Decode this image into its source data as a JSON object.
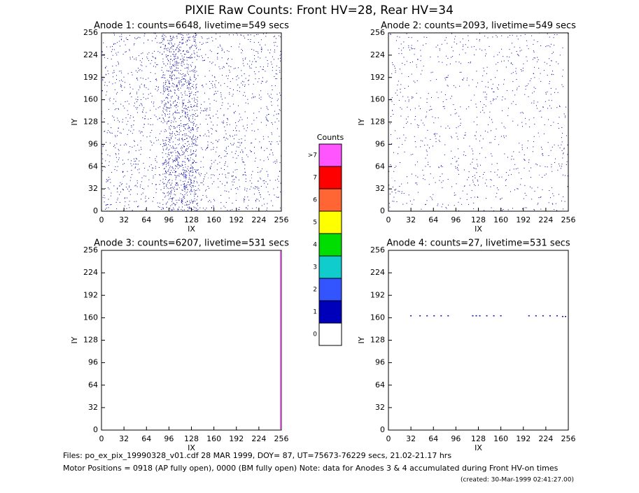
{
  "title": "PIXIE Raw Counts:  Front HV=28, Rear HV=34",
  "chart_data": [
    {
      "type": "scatter",
      "title": "Anode 1: counts=6648, livetime=549 secs",
      "x_label": "IX",
      "y_label": "IY",
      "xlim": [
        0,
        256
      ],
      "ylim": [
        0,
        256
      ],
      "xticks": [
        0,
        32,
        64,
        96,
        128,
        160,
        192,
        224,
        256
      ],
      "yticks": [
        0,
        32,
        64,
        96,
        128,
        160,
        192,
        224,
        256
      ],
      "color": "#0000a0"
    },
    {
      "type": "scatter",
      "title": "Anode 2: counts=2093, livetime=549 secs",
      "x_label": "IX",
      "y_label": "IY",
      "xlim": [
        0,
        256
      ],
      "ylim": [
        0,
        256
      ],
      "xticks": [
        0,
        32,
        64,
        96,
        128,
        160,
        192,
        224,
        256
      ],
      "yticks": [
        0,
        32,
        64,
        96,
        128,
        160,
        192,
        224,
        256
      ],
      "color": "#0000a0"
    },
    {
      "type": "line",
      "title": "Anode 3: counts=6207, livetime=531 secs",
      "x_label": "IX",
      "y_label": "IY",
      "xlim": [
        0,
        256
      ],
      "ylim": [
        0,
        256
      ],
      "xticks": [
        0,
        32,
        64,
        96,
        128,
        160,
        192,
        224,
        256
      ],
      "yticks": [
        0,
        32,
        64,
        96,
        128,
        160,
        192,
        224,
        256
      ],
      "color": "#d060d0",
      "x": [
        255,
        255
      ],
      "y": [
        1,
        255
      ]
    },
    {
      "type": "scatter",
      "title": "Anode 4: counts=27, livetime=531 secs",
      "x_label": "IX",
      "y_label": "IY",
      "xlim": [
        0,
        256
      ],
      "ylim": [
        0,
        256
      ],
      "xticks": [
        0,
        32,
        64,
        96,
        128,
        160,
        192,
        224,
        256
      ],
      "yticks": [
        0,
        32,
        64,
        96,
        128,
        160,
        192,
        224,
        256
      ],
      "color": "#0000a0",
      "x": [
        32,
        45,
        55,
        65,
        75,
        85,
        120,
        125,
        130,
        140,
        150,
        160,
        200,
        210,
        220,
        230,
        240,
        248,
        252
      ],
      "y": [
        163,
        163,
        163,
        163,
        163,
        163,
        163,
        163,
        163,
        163,
        163,
        163,
        163,
        163,
        163,
        163,
        163,
        162,
        162
      ]
    },
    {
      "type": "colorbar",
      "title": "Counts",
      "categories": [
        "0",
        "1",
        "2",
        "3",
        "4",
        "5",
        "6",
        "7",
        ">7"
      ],
      "colors": [
        "#ffffff",
        "#0000bb",
        "#3355ff",
        "#11cccc",
        "#00dd00",
        "#ffff00",
        "#ff6633",
        "#ff0000",
        "#ff55ff"
      ]
    }
  ],
  "footer": [
    "Files: po_ex_pix_19990328_v01.cdf    28 MAR 1999, DOY= 87, UT=75673-76229 secs, 21.02-21.17 hrs",
    "Motor Positions = 0918 (AP fully open), 0000 (BM fully open)    Note: data for Anodes 3 & 4 accumulated during Front HV-on times",
    "(created: 30-Mar-1999 02:41:27.00)"
  ]
}
